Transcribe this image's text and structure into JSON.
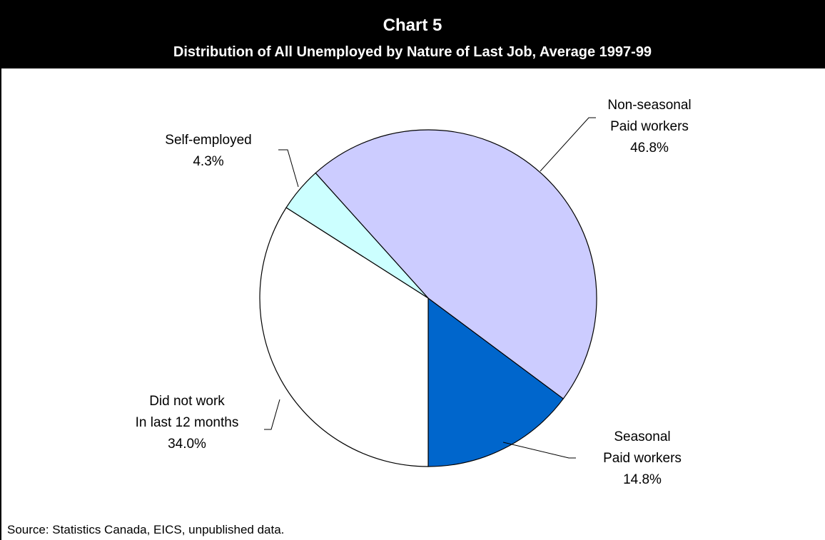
{
  "chart_data": {
    "type": "pie",
    "title": "Chart 5",
    "subtitle": "Distribution of All Unemployed by Nature of Last Job, Average 1997-99",
    "categories": [
      "Seasonal\nPaid workers",
      "Non-seasonal\nPaid workers",
      "Self-employed",
      "Did not work\nIn last 12 months"
    ],
    "values": [
      14.8,
      46.8,
      4.3,
      34.0
    ],
    "value_labels": [
      "14.8%",
      "46.8%",
      "4.3%",
      "34.0%"
    ],
    "colors": [
      "#0066cc",
      "#ccccff",
      "#ccffff",
      "#ffffff"
    ],
    "source": "Source: Statistics Canada, EICS, unpublished data."
  }
}
